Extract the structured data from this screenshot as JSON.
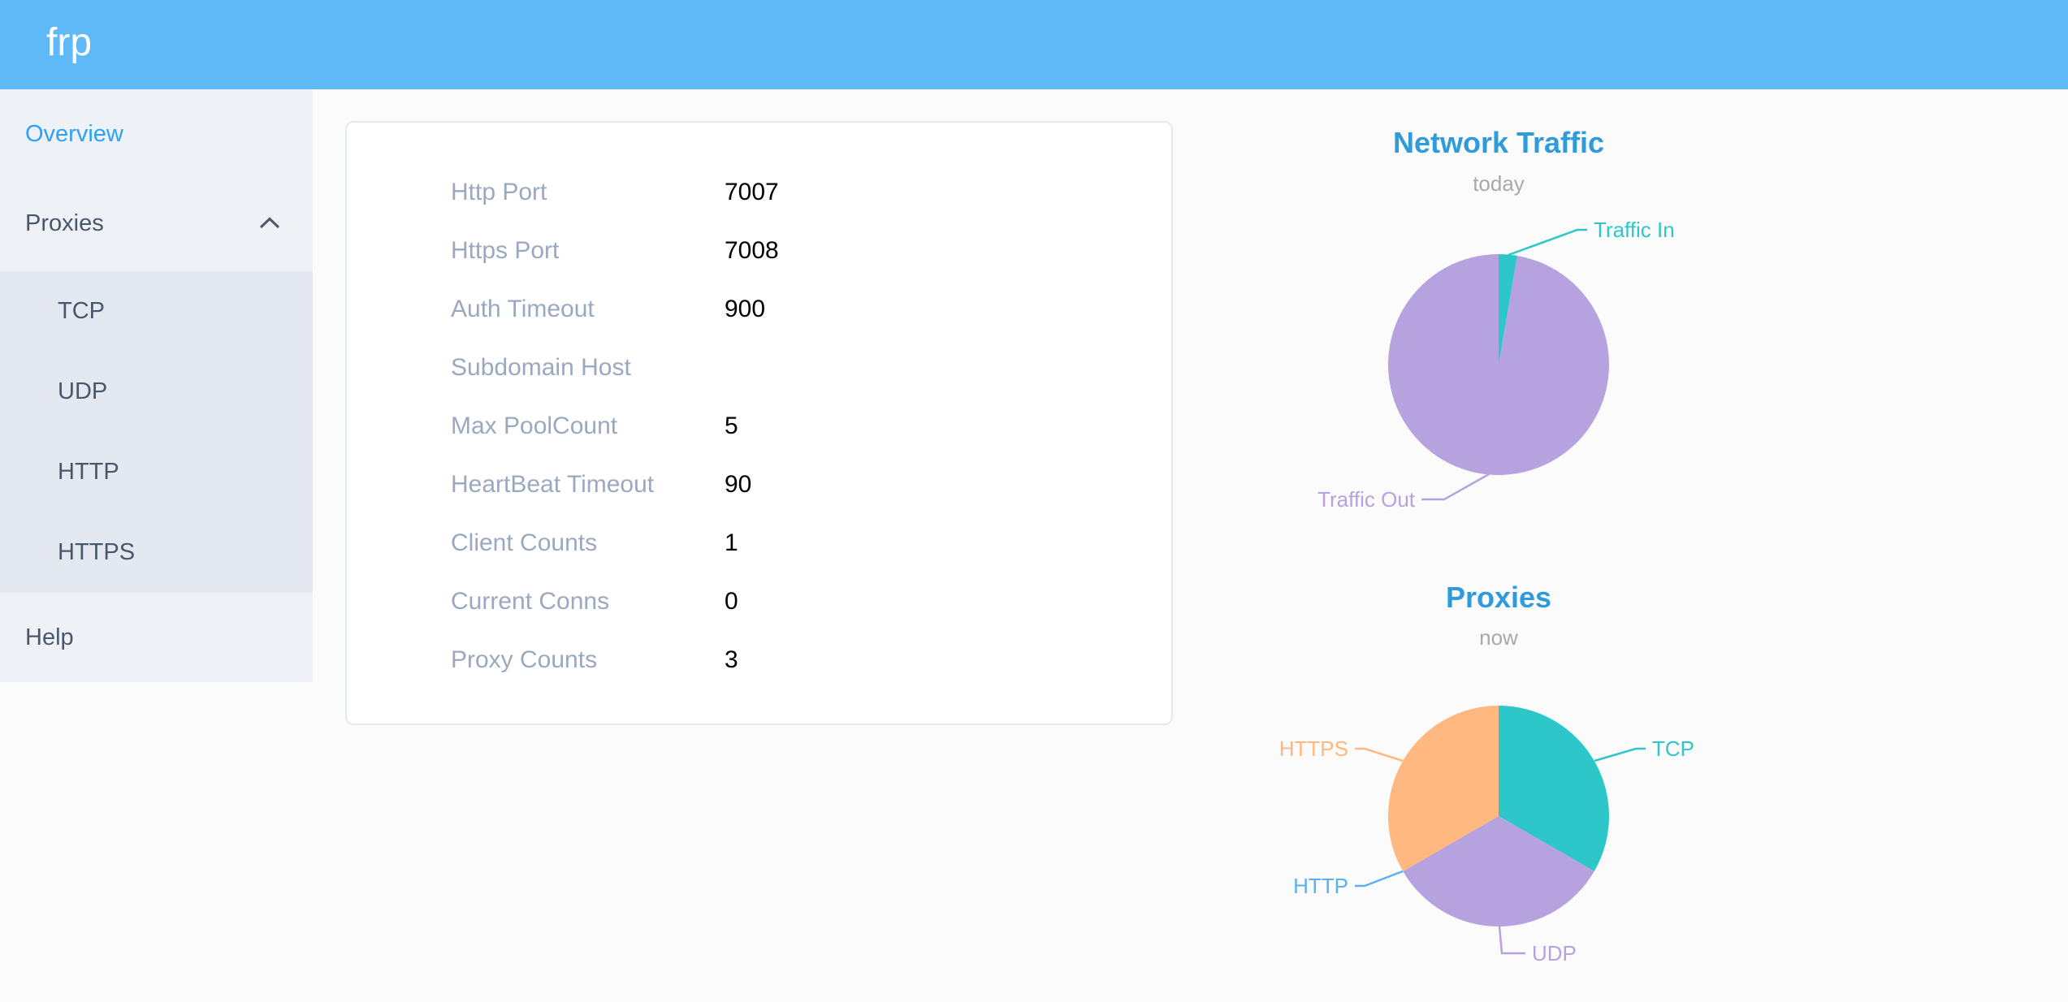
{
  "header": {
    "logo": "frp",
    "background_color": "#60b9f7"
  },
  "sidebar": {
    "overview_label": "Overview",
    "proxies_label": "Proxies",
    "help_label": "Help",
    "submenu": [
      "TCP",
      "UDP",
      "HTTP",
      "HTTPS"
    ],
    "active_item": "Overview",
    "active_color": "#2da1f8"
  },
  "overview": {
    "rows": [
      {
        "label": "Http Port",
        "value": "7007"
      },
      {
        "label": "Https Port",
        "value": "7008"
      },
      {
        "label": "Auth Timeout",
        "value": "900"
      },
      {
        "label": "Subdomain Host",
        "value": ""
      },
      {
        "label": "Max PoolCount",
        "value": "5"
      },
      {
        "label": "HeartBeat Timeout",
        "value": "90"
      },
      {
        "label": "Client Counts",
        "value": "1"
      },
      {
        "label": "Current Conns",
        "value": "0"
      },
      {
        "label": "Proxy Counts",
        "value": "3"
      }
    ]
  },
  "chart_data": [
    {
      "type": "pie",
      "title": "Network Traffic",
      "subtitle": "today",
      "legend_position": "outside-callout",
      "series": [
        {
          "name": "Traffic In",
          "value": 2.7,
          "color": "#2ec7c9"
        },
        {
          "name": "Traffic Out",
          "value": 97.3,
          "color": "#b6a2de"
        }
      ]
    },
    {
      "type": "pie",
      "title": "Proxies",
      "subtitle": "now",
      "legend_position": "outside-callout",
      "series": [
        {
          "name": "TCP",
          "value": 1,
          "color": "#2ec7c9"
        },
        {
          "name": "UDP",
          "value": 1,
          "color": "#b6a2de"
        },
        {
          "name": "HTTP",
          "value": 0,
          "color": "#5ab1ef"
        },
        {
          "name": "HTTPS",
          "value": 1,
          "color": "#ffb980"
        }
      ]
    }
  ]
}
